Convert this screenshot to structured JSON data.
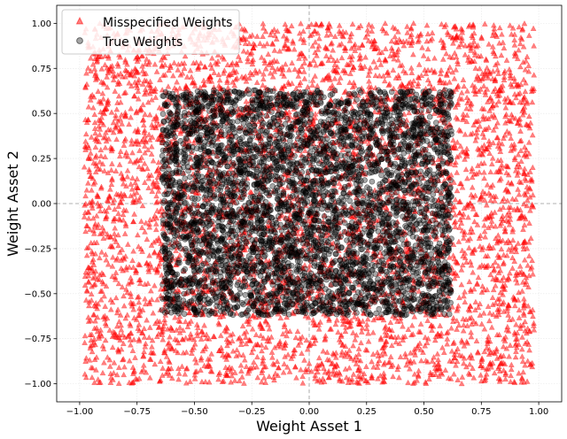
{
  "chart_data": {
    "type": "scatter",
    "xlabel": "Weight Asset 1",
    "ylabel": "Weight Asset 2",
    "xlim": [
      -1.1,
      1.1
    ],
    "ylim": [
      -1.1,
      1.1
    ],
    "x_ticks": [
      "−1.00",
      "−0.75",
      "−0.50",
      "−0.25",
      "0.00",
      "0.25",
      "0.50",
      "0.75",
      "1.00"
    ],
    "y_ticks": [
      "−1.00",
      "−0.75",
      "−0.50",
      "−0.25",
      "0.00",
      "0.25",
      "0.50",
      "0.75",
      "1.00"
    ],
    "grid": true,
    "reference_lines": {
      "x": 0,
      "y": 0
    },
    "legend": {
      "position": "top-left"
    },
    "series": [
      {
        "name": "Misspecified Weights",
        "marker": "triangle",
        "color": "#ff0000",
        "opacity": 0.5,
        "distribution": "uniform",
        "x_range": [
          -0.98,
          0.98
        ],
        "y_range": [
          -1.0,
          1.0
        ],
        "approx_points": 5000
      },
      {
        "name": "True Weights",
        "marker": "circle",
        "color": "#000000",
        "opacity": 0.35,
        "distribution": "uniform",
        "x_range": [
          -0.64,
          0.62
        ],
        "y_range": [
          -0.62,
          0.63
        ],
        "approx_points": 4500
      }
    ]
  }
}
